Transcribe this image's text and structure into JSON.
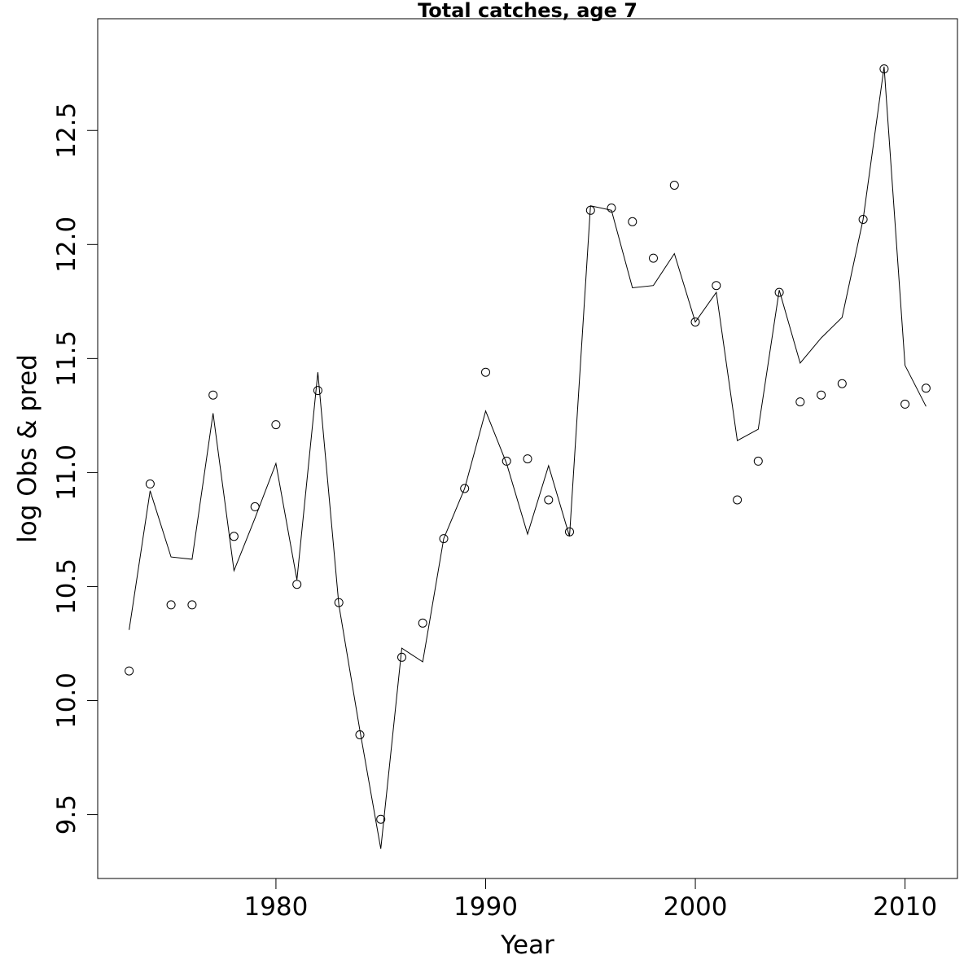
{
  "chart_data": {
    "type": "line",
    "title": "Total catches, age 7",
    "xlabel": "Year",
    "ylabel": "log Obs & pred",
    "xlim": [
      1971.5,
      2012.5
    ],
    "ylim": [
      9.22,
      12.99
    ],
    "x_ticks": [
      1980,
      1990,
      2000,
      2010
    ],
    "x_tick_labels": [
      "1980",
      "1990",
      "2000",
      "2010"
    ],
    "y_ticks": [
      9.5,
      10.0,
      10.5,
      11.0,
      11.5,
      12.0,
      12.5
    ],
    "y_tick_labels": [
      "9.5",
      "10.0",
      "10.5",
      "11.0",
      "11.5",
      "12.0",
      "12.5"
    ],
    "grid": false,
    "legend": "none",
    "series": [
      {
        "role": "observed",
        "style": "open-circles",
        "points": [
          [
            1973,
            10.13
          ],
          [
            1974,
            10.95
          ],
          [
            1975,
            10.42
          ],
          [
            1976,
            10.42
          ],
          [
            1977,
            11.34
          ],
          [
            1978,
            10.72
          ],
          [
            1979,
            10.85
          ],
          [
            1980,
            11.21
          ],
          [
            1981,
            10.51
          ],
          [
            1982,
            11.36
          ],
          [
            1983,
            10.43
          ],
          [
            1984,
            9.85
          ],
          [
            1985,
            9.48
          ],
          [
            1986,
            10.19
          ],
          [
            1987,
            10.34
          ],
          [
            1988,
            10.71
          ],
          [
            1989,
            10.93
          ],
          [
            1990,
            11.44
          ],
          [
            1991,
            11.05
          ],
          [
            1992,
            11.06
          ],
          [
            1993,
            10.88
          ],
          [
            1994,
            10.74
          ],
          [
            1995,
            12.15
          ],
          [
            1996,
            12.16
          ],
          [
            1997,
            12.1
          ],
          [
            1998,
            11.94
          ],
          [
            1999,
            12.26
          ],
          [
            2000,
            11.66
          ],
          [
            2001,
            11.82
          ],
          [
            2002,
            10.88
          ],
          [
            2003,
            11.05
          ],
          [
            2004,
            11.79
          ],
          [
            2005,
            11.31
          ],
          [
            2006,
            11.34
          ],
          [
            2007,
            11.39
          ],
          [
            2008,
            12.11
          ],
          [
            2009,
            12.77
          ],
          [
            2010,
            11.3
          ],
          [
            2011,
            11.37
          ]
        ]
      },
      {
        "role": "predicted",
        "style": "line",
        "points": [
          [
            1973,
            10.31
          ],
          [
            1974,
            10.92
          ],
          [
            1975,
            10.63
          ],
          [
            1976,
            10.62
          ],
          [
            1977,
            11.26
          ],
          [
            1978,
            10.57
          ],
          [
            1979,
            10.8
          ],
          [
            1980,
            11.04
          ],
          [
            1981,
            10.53
          ],
          [
            1982,
            11.44
          ],
          [
            1983,
            10.42
          ],
          [
            1984,
            9.87
          ],
          [
            1985,
            9.35
          ],
          [
            1986,
            10.23
          ],
          [
            1987,
            10.17
          ],
          [
            1988,
            10.71
          ],
          [
            1989,
            10.93
          ],
          [
            1990,
            11.27
          ],
          [
            1991,
            11.04
          ],
          [
            1992,
            10.73
          ],
          [
            1993,
            11.03
          ],
          [
            1994,
            10.72
          ],
          [
            1995,
            12.17
          ],
          [
            1996,
            12.15
          ],
          [
            1997,
            11.81
          ],
          [
            1998,
            11.82
          ],
          [
            1999,
            11.96
          ],
          [
            2000,
            11.66
          ],
          [
            2001,
            11.79
          ],
          [
            2002,
            11.14
          ],
          [
            2003,
            11.19
          ],
          [
            2004,
            11.8
          ],
          [
            2005,
            11.48
          ],
          [
            2006,
            11.59
          ],
          [
            2007,
            11.68
          ],
          [
            2008,
            12.11
          ],
          [
            2009,
            12.78
          ],
          [
            2010,
            11.47
          ],
          [
            2011,
            11.29
          ]
        ]
      }
    ]
  }
}
